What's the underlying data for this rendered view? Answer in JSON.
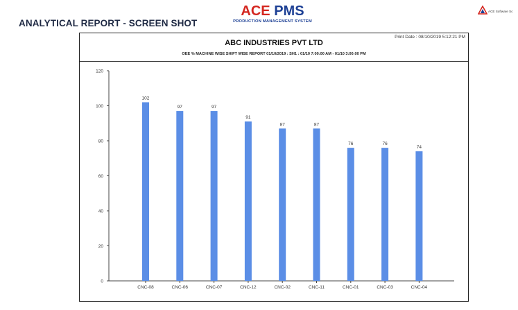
{
  "page": {
    "heading": "ANALYTICAL REPORT - SCREEN SHOT",
    "brand_main_ace": "ACE",
    "brand_main_pms": " PMS",
    "brand_sub": "PRODUCTION MANAGEMENT SYSTEM",
    "corner_brand": "ACE Software Sc"
  },
  "report": {
    "print_date": "Print Date : 08/10/2019 5:12:21 PM",
    "company": "ABC INDUSTRIES PVT LTD",
    "subtitle": "OEE % MACHINE WISE SHIFT WISE REPORT 01/10/2019 : SH1 : 01/10 7:00:00 AM - 01/10 3:00:00 PM"
  },
  "colors": {
    "bar": "#5b8ee6",
    "axis": "#444444",
    "brand_red": "#d4261f",
    "brand_blue": "#1c3f94"
  },
  "chart_data": {
    "type": "bar",
    "title": "OEE % MACHINE WISE SHIFT WISE REPORT 01/10/2019 : SH1 : 01/10 7:00:00 AM - 01/10 3:00:00 PM",
    "categories": [
      "CNC-08",
      "CNC-06",
      "CNC-07",
      "CNC-12",
      "CNC-02",
      "CNC-11",
      "CNC-01",
      "CNC-03",
      "CNC-04"
    ],
    "values": [
      102,
      97,
      97,
      91,
      87,
      87,
      76,
      76,
      74
    ],
    "ylim": [
      0,
      120
    ],
    "yticks": [
      0,
      20,
      40,
      60,
      80,
      100,
      120
    ],
    "xlabel": "",
    "ylabel": "",
    "grid": false,
    "data_labels": true
  }
}
